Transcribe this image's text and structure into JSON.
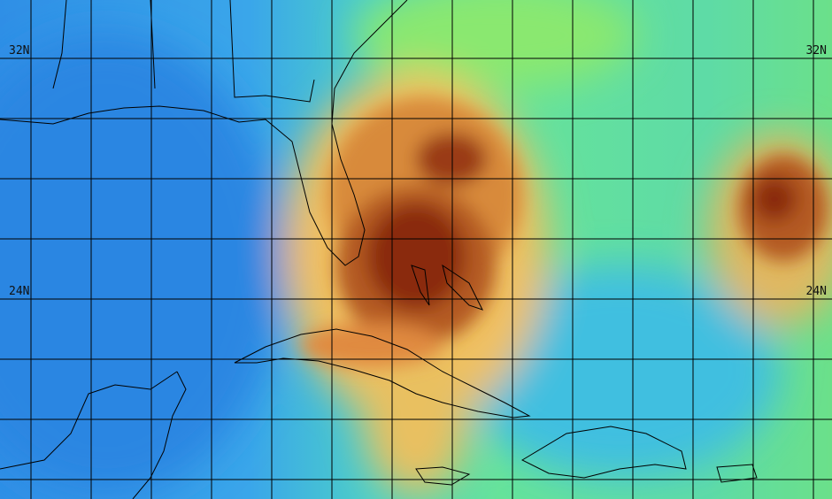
{
  "latitude_labels": [
    {
      "left": "32N",
      "right": "32N"
    },
    {
      "left": "24N",
      "right": "24N"
    }
  ]
}
